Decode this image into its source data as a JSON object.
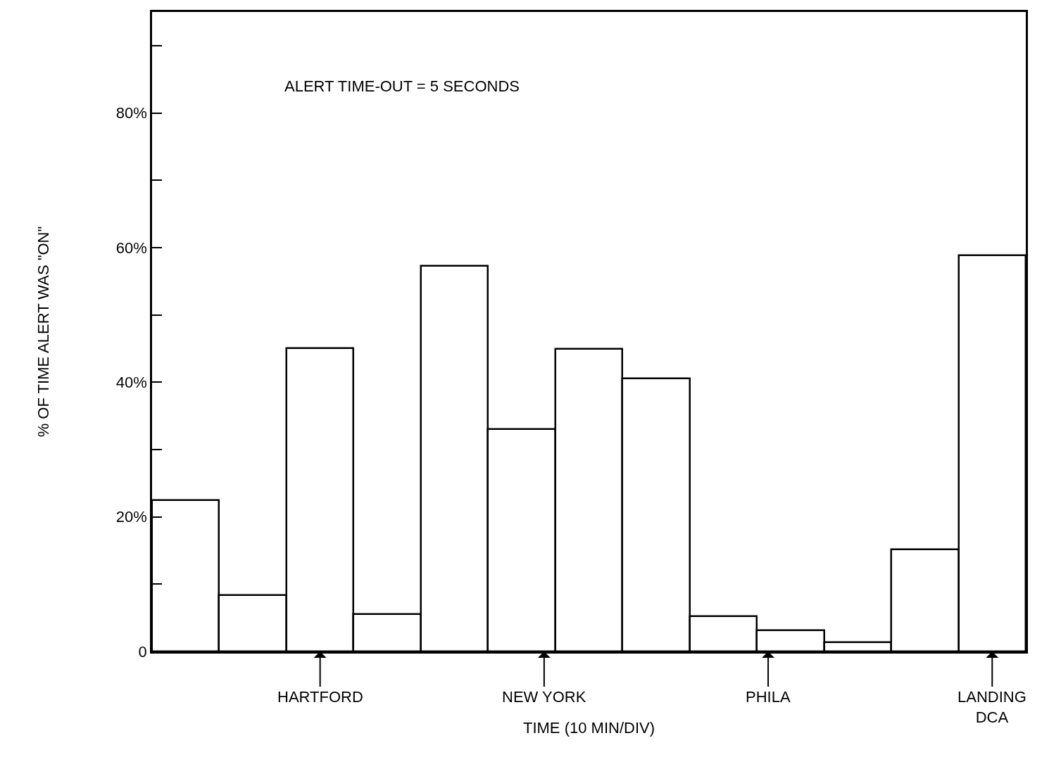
{
  "chart_data": {
    "type": "bar",
    "xlabel": "TIME (10 MIN/DIV)",
    "ylabel": "% OF TIME ALERT WAS \"ON\"",
    "categories": [
      null,
      null,
      null,
      null,
      null,
      null,
      null,
      null,
      null,
      null,
      null,
      null,
      null
    ],
    "values": [
      22.5,
      8.4,
      45.0,
      5.5,
      57.3,
      33.0,
      44.9,
      40.5,
      5.2,
      3.1,
      1.4,
      15.2,
      58.8
    ],
    "color": "#ffffff",
    "ylim": [
      0,
      95
    ],
    "yticks": [
      0,
      {
        "value": 10,
        "label": null
      },
      {
        "value": 20,
        "label": "20%"
      },
      {
        "value": 30,
        "label": null
      },
      {
        "value": 40,
        "label": "40%"
      },
      {
        "value": 50,
        "label": null
      },
      {
        "value": 60,
        "label": "60%"
      },
      {
        "value": 70,
        "label": null
      },
      {
        "value": 80,
        "label": "80%"
      },
      {
        "value": 90,
        "label": null
      }
    ],
    "annotations": [
      "ALERT TIME-OUT = 5 SECONDS",
      "HARTFORD",
      "NEW YORK",
      "PHILA",
      "LANDING\nDCA"
    ]
  }
}
